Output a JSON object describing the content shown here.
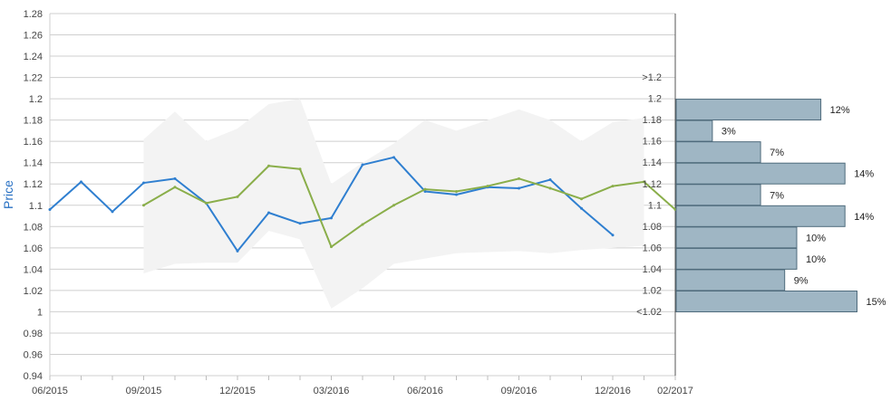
{
  "chart_data": [
    {
      "type": "line",
      "ylabel": "Price",
      "ylim": [
        0.94,
        1.28
      ],
      "yticks": [
        "0.94",
        "0.96",
        "0.98",
        "1",
        "1.02",
        "1.04",
        "1.06",
        "1.08",
        "1.1",
        "1.12",
        "1.14",
        "1.16",
        "1.18",
        "1.2",
        "1.22",
        "1.24",
        "1.26",
        "1.28"
      ],
      "x_tick_labels": [
        "06/2015",
        "09/2015",
        "12/2015",
        "03/2016",
        "06/2016",
        "09/2016",
        "12/2016",
        "02/2017"
      ],
      "x": [
        "2015-06",
        "2015-07",
        "2015-08",
        "2015-09",
        "2015-10",
        "2015-11",
        "2015-12",
        "2016-01",
        "2016-02",
        "2016-03",
        "2016-04",
        "2016-05",
        "2016-06",
        "2016-07",
        "2016-08",
        "2016-09",
        "2016-10",
        "2016-11",
        "2016-12",
        "2017-01",
        "2017-02"
      ],
      "grid": true,
      "series": [
        {
          "color": "#2f7fd0",
          "values": [
            1.096,
            1.122,
            1.094,
            1.121,
            1.125,
            1.102,
            1.057,
            1.093,
            1.083,
            1.088,
            1.138,
            1.145,
            1.113,
            1.11,
            1.117,
            1.116,
            1.124,
            1.097,
            1.072,
            null,
            null
          ]
        },
        {
          "color": "#8aae4a",
          "values": [
            null,
            null,
            null,
            1.1,
            1.117,
            1.102,
            1.108,
            1.137,
            1.134,
            1.061,
            1.082,
            1.1,
            1.115,
            1.113,
            1.118,
            1.125,
            1.116,
            1.106,
            1.118,
            1.122,
            1.096
          ]
        }
      ],
      "range_band": {
        "color": "#f3f3f3",
        "upper": [
          null,
          null,
          null,
          1.162,
          1.188,
          1.16,
          1.172,
          1.195,
          1.2,
          1.12,
          1.14,
          1.158,
          1.18,
          1.17,
          1.18,
          1.19,
          1.18,
          1.16,
          1.178,
          1.182,
          null
        ],
        "lower": [
          null,
          null,
          null,
          1.036,
          1.045,
          1.046,
          1.046,
          1.076,
          1.068,
          1.003,
          1.022,
          1.045,
          1.05,
          1.055,
          1.056,
          1.057,
          1.055,
          1.058,
          1.06,
          1.062,
          null
        ]
      }
    },
    {
      "type": "bar",
      "orientation": "horizontal",
      "color": "#9fb6c4",
      "categories": [
        ">1.2",
        "1.2",
        "1.18",
        "1.16",
        "1.14",
        "1.12",
        "1.1",
        "1.08",
        "1.06",
        "1.04",
        "1.02",
        "<1.02"
      ],
      "values": [
        0,
        12,
        3,
        7,
        14,
        7,
        14,
        10,
        10,
        9,
        15,
        null
      ],
      "labels": [
        "",
        "12%",
        "3%",
        "7%",
        "14%",
        "7%",
        "14%",
        "10%",
        "10%",
        "9%",
        "15%",
        ""
      ]
    }
  ]
}
